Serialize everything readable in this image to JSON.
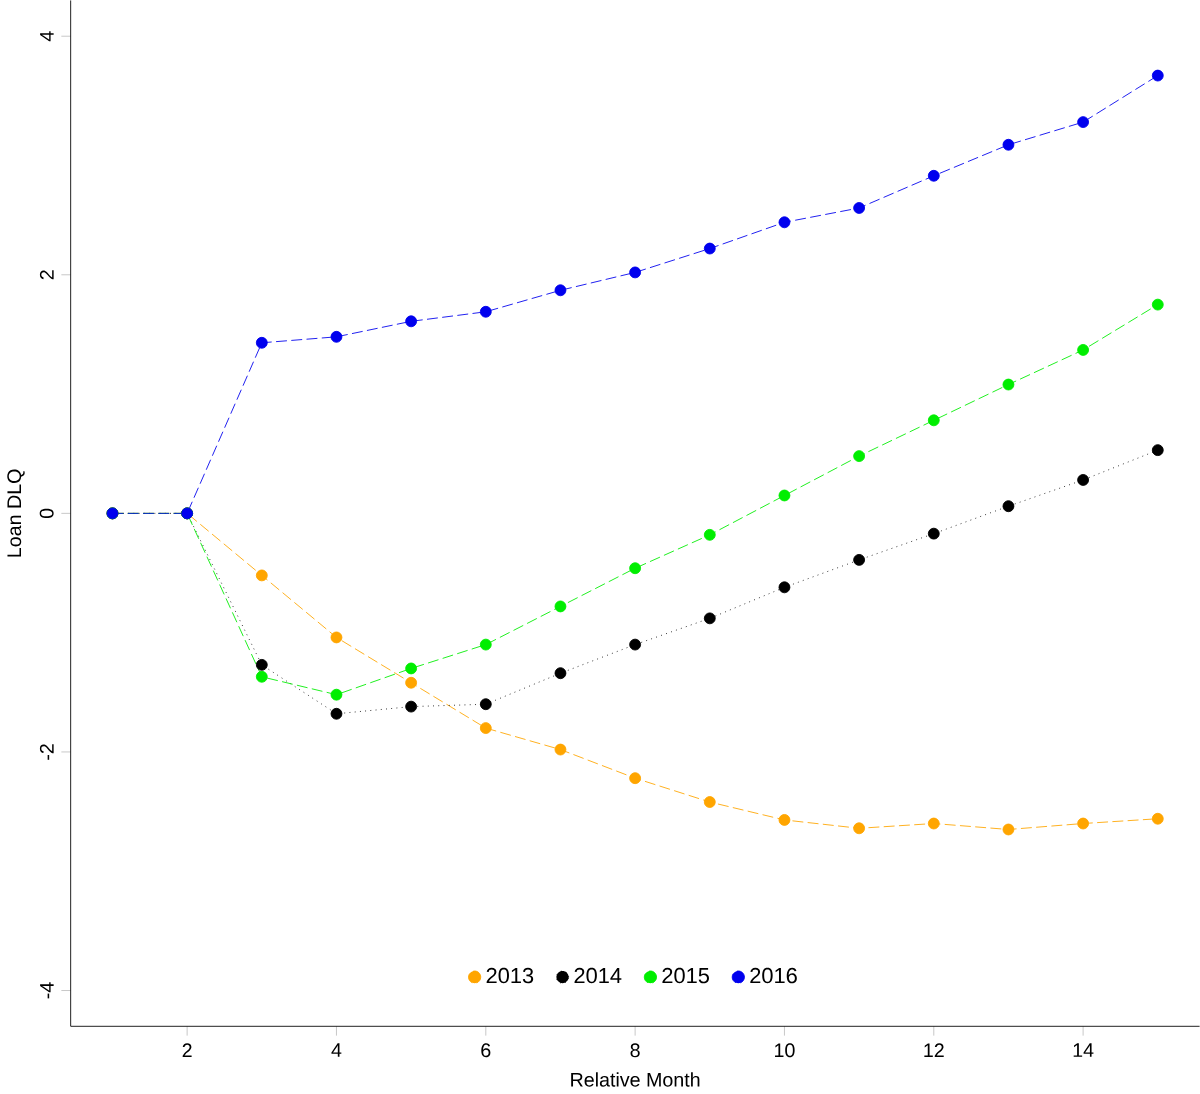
{
  "chart_data": {
    "type": "line",
    "xlabel": "Relative Month",
    "ylabel": "Loan DLQ",
    "x": [
      1,
      2,
      3,
      4,
      5,
      6,
      7,
      8,
      9,
      10,
      11,
      12,
      13,
      14,
      15
    ],
    "series": [
      {
        "name": "2013",
        "color": "#ffa500",
        "line_style": "dashed",
        "values": [
          0,
          0,
          -0.52,
          -1.04,
          -1.42,
          -1.8,
          -1.98,
          -2.22,
          -2.42,
          -2.57,
          -2.64,
          -2.6,
          -2.65,
          -2.6,
          -2.56
        ]
      },
      {
        "name": "2014",
        "color": "#000000",
        "line_style": "dotted",
        "values": [
          0,
          0,
          -1.27,
          -1.68,
          -1.62,
          -1.6,
          -1.34,
          -1.1,
          -0.88,
          -0.62,
          -0.39,
          -0.17,
          0.06,
          0.28,
          0.53
        ]
      },
      {
        "name": "2015",
        "color": "#00ee00",
        "line_style": "dashed",
        "values": [
          0,
          0,
          -1.37,
          -1.52,
          -1.3,
          -1.1,
          -0.78,
          -0.46,
          -0.18,
          0.15,
          0.48,
          0.78,
          1.08,
          1.37,
          1.75
        ]
      },
      {
        "name": "2016",
        "color": "#0000ee",
        "line_style": "dashed",
        "values": [
          0,
          0,
          1.43,
          1.48,
          1.61,
          1.69,
          1.87,
          2.02,
          2.22,
          2.44,
          2.56,
          2.83,
          3.09,
          3.28,
          3.67
        ]
      }
    ],
    "xlim": [
      0.44,
      15.56
    ],
    "ylim": [
      -4.3,
      4.3
    ],
    "xticks": [
      2,
      4,
      6,
      8,
      10,
      12,
      14
    ],
    "yticks": [
      -4,
      -2,
      0,
      2,
      4
    ],
    "marker": "circle",
    "legend": "bottom",
    "grid": false
  }
}
